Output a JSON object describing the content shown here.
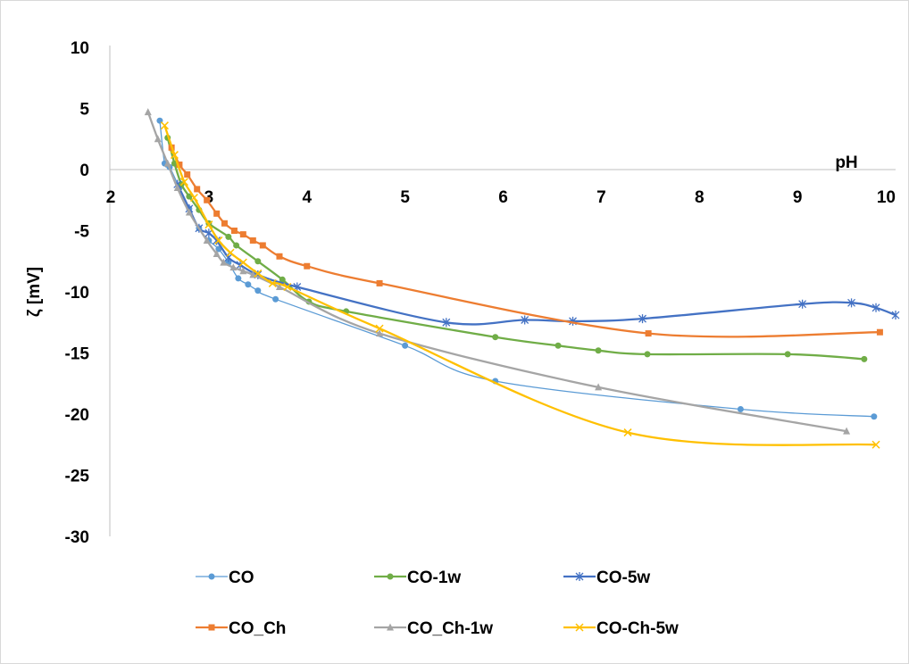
{
  "chart_data": {
    "type": "line",
    "xlabel": "pH",
    "ylabel": "ζ [mV]",
    "xlim": [
      2,
      10
    ],
    "ylim": [
      -30,
      10
    ],
    "x_ticks": [
      "2",
      "3",
      "4",
      "5",
      "6",
      "7",
      "8",
      "9",
      "10"
    ],
    "y_ticks": [
      "10",
      "5",
      "0",
      "-5",
      "-10",
      "-15",
      "-20",
      "-25",
      "-30"
    ],
    "grid": false,
    "legend_position": "bottom",
    "series": [
      {
        "name": "CO",
        "color": "#5b9bd5",
        "marker": "circle",
        "x": [
          2.5,
          2.55,
          2.6,
          2.7,
          2.8,
          2.9,
          3.0,
          3.1,
          3.2,
          3.3,
          3.4,
          3.5,
          3.68,
          5.0,
          5.92,
          8.42,
          9.78
        ],
        "y": [
          4.0,
          0.5,
          0.2,
          -1.5,
          -3.2,
          -4.8,
          -5.8,
          -6.5,
          -7.6,
          -8.9,
          -9.4,
          -9.9,
          -10.6,
          -14.4,
          -17.3,
          -19.6,
          -20.2
        ]
      },
      {
        "name": "CO-1w",
        "color": "#70ad47",
        "marker": "circle",
        "x": [
          2.58,
          2.65,
          2.72,
          2.8,
          2.9,
          3.0,
          3.2,
          3.28,
          3.5,
          3.75,
          4.02,
          4.4,
          5.92,
          6.56,
          6.97,
          7.47,
          8.9,
          9.68
        ],
        "y": [
          2.6,
          0.5,
          -1.2,
          -2.2,
          -3.3,
          -4.4,
          -5.5,
          -6.2,
          -7.5,
          -9.0,
          -10.8,
          -11.6,
          -13.7,
          -14.4,
          -14.8,
          -15.1,
          -15.1,
          -15.5
        ]
      },
      {
        "name": "CO-5w",
        "color": "#4472c4",
        "marker": "star",
        "x": [
          2.68,
          2.8,
          2.9,
          3.0,
          3.08,
          3.2,
          3.32,
          3.5,
          3.9,
          5.42,
          6.22,
          6.71,
          7.42,
          9.05,
          9.55,
          9.8,
          10.0
        ],
        "y": [
          -1.2,
          -3.2,
          -4.8,
          -5.2,
          -5.8,
          -7.2,
          -7.8,
          -8.6,
          -9.6,
          -12.5,
          -12.3,
          -12.4,
          -12.2,
          -11.0,
          -10.9,
          -11.3,
          -11.9
        ]
      },
      {
        "name": "CO_Ch",
        "color": "#ed7d31",
        "marker": "square",
        "x": [
          2.62,
          2.7,
          2.78,
          2.88,
          2.98,
          3.08,
          3.16,
          3.26,
          3.35,
          3.45,
          3.55,
          3.72,
          4.0,
          4.74,
          7.48,
          9.84
        ],
        "y": [
          1.8,
          0.4,
          -0.4,
          -1.6,
          -2.5,
          -3.6,
          -4.4,
          -5.0,
          -5.3,
          -5.8,
          -6.2,
          -7.1,
          -7.9,
          -9.3,
          -13.4,
          -13.3
        ]
      },
      {
        "name": "CO_Ch-1w",
        "color": "#a5a5a5",
        "marker": "triangle",
        "x": [
          2.38,
          2.48,
          2.58,
          2.68,
          2.8,
          2.98,
          3.08,
          3.15,
          3.25,
          3.35,
          3.45,
          3.72,
          4.74,
          6.97,
          9.5
        ],
        "y": [
          4.7,
          2.5,
          0.5,
          -1.5,
          -3.5,
          -5.8,
          -6.9,
          -7.6,
          -8.0,
          -8.3,
          -8.6,
          -9.6,
          -13.4,
          -17.8,
          -21.4
        ]
      },
      {
        "name": "CO-Ch-5w",
        "color": "#ffc000",
        "marker": "x",
        "x": [
          2.55,
          2.65,
          2.75,
          2.85,
          3.0,
          3.1,
          3.22,
          3.35,
          3.5,
          3.65,
          3.8,
          4.74,
          7.27,
          9.8
        ],
        "y": [
          3.6,
          1.2,
          -1.0,
          -2.3,
          -4.5,
          -5.8,
          -6.8,
          -7.6,
          -8.5,
          -9.3,
          -9.6,
          -13.0,
          -21.5,
          -22.5
        ]
      }
    ]
  }
}
